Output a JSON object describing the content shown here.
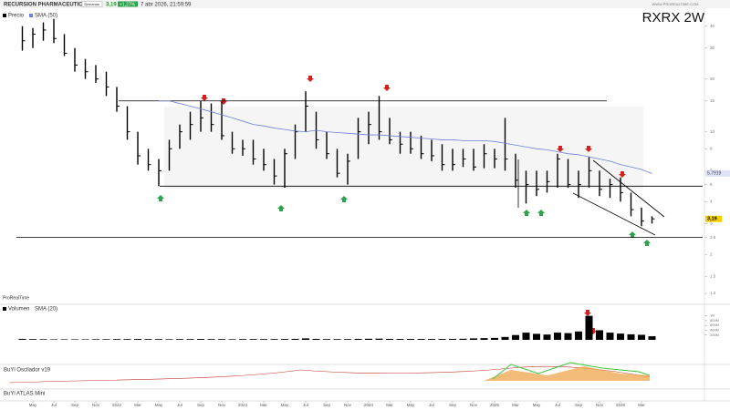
{
  "header": {
    "name": "RECURSION PHARMACEUTICALS",
    "period": "Semanas",
    "price": "3,19",
    "change": "+1,27%",
    "datetime": "7 abr 2026, 21:59:59",
    "site": "WWW.PROREALTIME.COM",
    "brand": "ProRealTime"
  },
  "chart_data": {
    "type": "ohlc",
    "title": "RXRX  2W",
    "log_scale": true,
    "categories": [
      null,
      "May",
      null,
      "Jul",
      null,
      "Sep",
      null,
      "Nov",
      null,
      "2022",
      null,
      "Mar",
      null,
      "May",
      null,
      "Jul",
      null,
      "Sep",
      null,
      "Nov",
      null,
      "2023",
      null,
      "Mar",
      null,
      "May",
      null,
      "Jul",
      null,
      "Sep",
      null,
      "Nov",
      null,
      "2024",
      null,
      "Mar",
      null,
      "May",
      null,
      "Jul",
      null,
      "Sep",
      null,
      "Nov",
      null,
      "2025",
      null,
      "Mar",
      null,
      "May",
      null,
      "Jul",
      null,
      "Sep",
      null,
      "Nov",
      null,
      "2026",
      null,
      "Mar",
      null
    ],
    "series": [
      {
        "name": "Precio",
        "color": "#000000",
        "high": [
          40,
          39,
          42,
          44,
          36,
          30,
          26,
          24,
          22,
          18,
          14,
          10,
          8,
          7,
          9,
          11,
          13,
          15,
          14.5,
          14.8,
          10,
          9,
          9,
          8,
          7,
          8,
          11,
          17,
          13,
          10,
          8,
          7.5,
          12,
          13,
          16,
          12,
          10,
          10,
          9.5,
          9,
          8.5,
          8,
          8,
          8,
          8.5,
          8,
          12,
          7.5,
          6,
          6,
          6,
          7.5,
          7,
          6,
          7.2,
          6,
          5.4,
          5.5,
          4.5,
          3.7,
          3.3
        ],
        "low": [
          29,
          30,
          33,
          32,
          27,
          22,
          20,
          19,
          16,
          13,
          9,
          6.5,
          6,
          4.9,
          6,
          8,
          9,
          10,
          10,
          9,
          7.5,
          7.3,
          6.5,
          6,
          5,
          4.8,
          7,
          10,
          8,
          7,
          5.5,
          5,
          7,
          8.5,
          9,
          8.5,
          7.5,
          7.5,
          7,
          6.8,
          6,
          6,
          6.3,
          6,
          6.2,
          6.2,
          6,
          4.8,
          3.9,
          4.3,
          4.5,
          4.8,
          4.8,
          4.2,
          4.8,
          4.3,
          4.2,
          4,
          3.3,
          2.9,
          3.0
        ],
        "close": [
          33,
          36,
          38,
          34,
          28,
          24,
          22,
          20,
          18,
          14,
          10,
          7.3,
          6.5,
          6,
          8,
          10,
          11,
          12,
          11,
          9.5,
          8,
          8,
          7,
          6.5,
          5.6,
          7.5,
          10,
          14,
          9,
          7.5,
          5.8,
          6.8,
          10,
          11,
          10,
          9,
          8.5,
          8,
          7.5,
          7.3,
          6.5,
          6.5,
          7,
          6.3,
          7.5,
          7,
          7,
          5.3,
          5,
          4.7,
          5.2,
          7,
          5,
          5,
          6,
          4.7,
          5,
          4.5,
          3.6,
          3.1,
          3.19
        ]
      },
      {
        "name": "SMA (50)",
        "color": "#6f7fd8",
        "values": [
          null,
          null,
          null,
          null,
          null,
          null,
          null,
          null,
          null,
          null,
          null,
          null,
          null,
          15,
          15,
          14.5,
          14,
          13.5,
          13,
          12.5,
          12,
          11.5,
          11,
          10.8,
          10.5,
          10.3,
          10.1,
          10,
          10.2,
          10,
          9.9,
          9.8,
          9.7,
          9.6,
          9.6,
          9.5,
          9.4,
          9.3,
          9.2,
          9.1,
          9,
          9,
          8.9,
          8.9,
          8.9,
          8.8,
          8.6,
          8.4,
          8.2,
          8,
          7.9,
          7.7,
          7.5,
          7.4,
          7.2,
          7,
          6.8,
          6.5,
          6.3,
          6.1,
          5.79
        ],
        "value_label": "5,7919"
      }
    ],
    "levels": [
      15,
      4.9,
      2.5
    ],
    "ylim": [
      1.2,
      50
    ],
    "yticks": [
      1.2,
      1.5,
      2,
      2.5,
      3,
      4,
      5,
      6,
      8,
      10,
      15,
      20,
      30,
      40
    ],
    "volume": {
      "name": "Volumen",
      "sma_name": "SMA (20)",
      "color": "#000000",
      "values": [
        40,
        30,
        25,
        20,
        20,
        20,
        20,
        25,
        25,
        30,
        30,
        35,
        30,
        30,
        25,
        30,
        30,
        35,
        30,
        30,
        25,
        30,
        30,
        30,
        30,
        35,
        40,
        60,
        40,
        30,
        30,
        30,
        40,
        45,
        50,
        40,
        35,
        35,
        35,
        35,
        35,
        40,
        45,
        60,
        70,
        80,
        120,
        200,
        300,
        250,
        220,
        300,
        280,
        350,
        1000,
        400,
        300,
        260,
        230,
        210,
        150
      ],
      "ylim": [
        0,
        1100
      ],
      "yticks": [
        {
          "value": 200,
          "label": "200M"
        },
        {
          "value": 400,
          "label": "400M"
        },
        {
          "value": 600,
          "label": "600M"
        },
        {
          "value": 800,
          "label": "800M"
        },
        {
          "value": 1000,
          "label": "1B"
        }
      ]
    },
    "indicators": [
      "BuYl Oscilador v19",
      "BuYl ATLAS Mini"
    ]
  }
}
